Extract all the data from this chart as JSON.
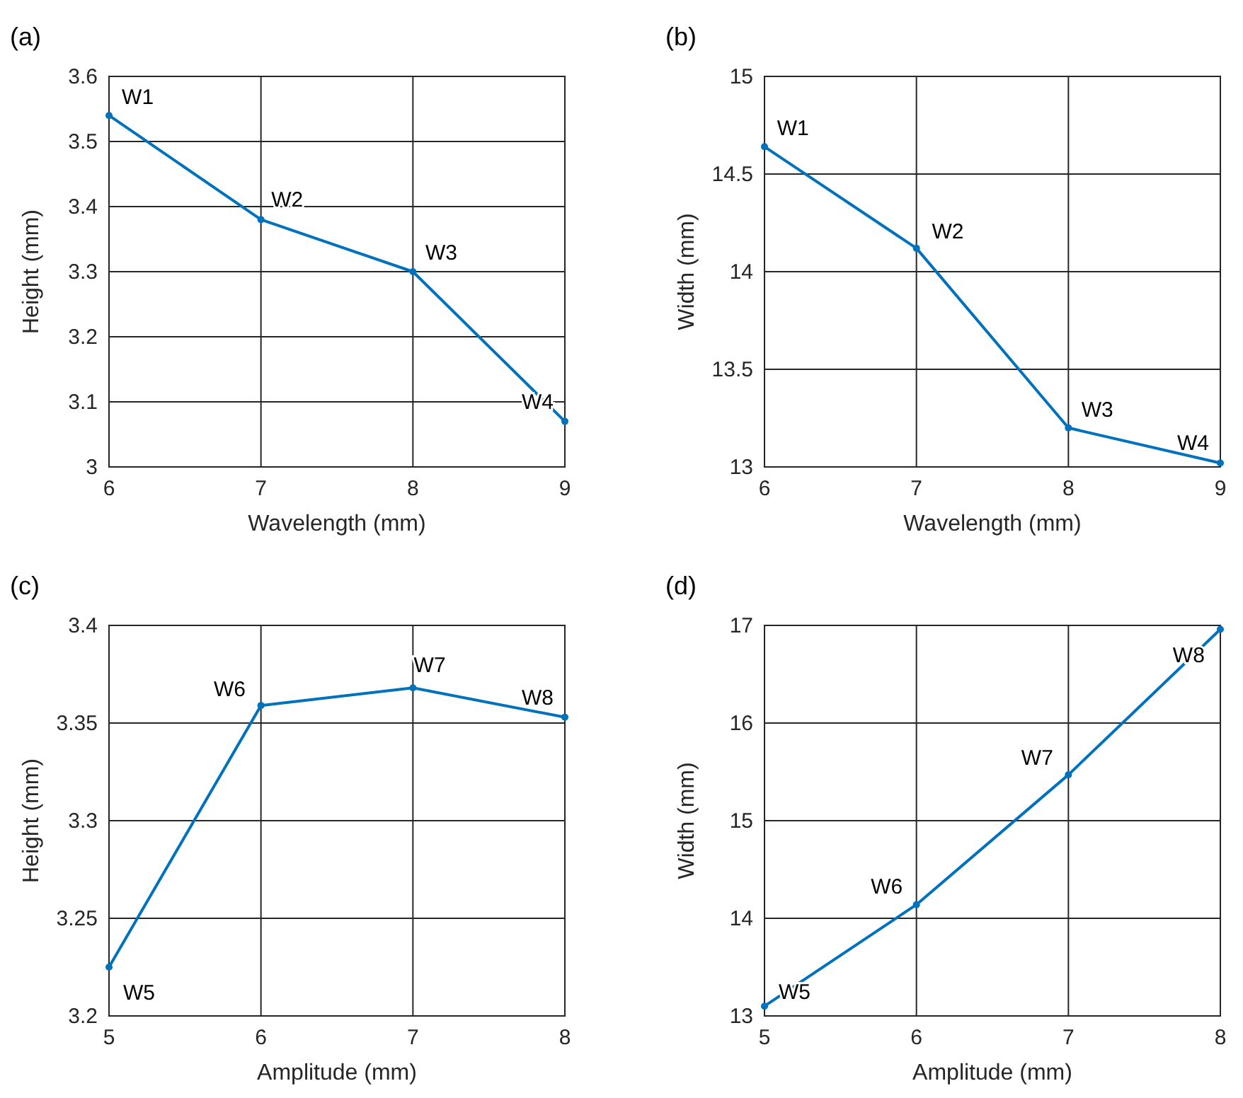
{
  "chart_data": [
    {
      "type": "line",
      "title": "(a)",
      "xlabel": "Wavelength (mm)",
      "ylabel": "Height (mm)",
      "x": [
        6,
        7,
        8,
        9
      ],
      "series": [
        {
          "color": "#0072bd",
          "values": [
            3.54,
            3.38,
            3.3,
            3.07
          ]
        }
      ],
      "xlim": [
        6,
        9
      ],
      "ylim": [
        3,
        3.6
      ],
      "xticks": [
        6,
        7,
        8,
        9
      ],
      "yticks": [
        3,
        3.1,
        3.2,
        3.3,
        3.4,
        3.5,
        3.6
      ],
      "grid": true,
      "marker": "circle",
      "annotations": [
        {
          "text": "W1",
          "x": 6,
          "y": 3.54
        },
        {
          "text": "W2",
          "x": 7,
          "y": 3.38
        },
        {
          "text": "W3",
          "x": 8,
          "y": 3.3
        },
        {
          "text": "W4",
          "x": 9,
          "y": 3.07
        }
      ]
    },
    {
      "type": "line",
      "title": "(b)",
      "xlabel": "Wavelength (mm)",
      "ylabel": "Width (mm)",
      "x": [
        6,
        7,
        8,
        9
      ],
      "series": [
        {
          "color": "#0072bd",
          "values": [
            14.64,
            14.12,
            13.2,
            13.02
          ]
        }
      ],
      "xlim": [
        6,
        9
      ],
      "ylim": [
        13,
        15
      ],
      "xticks": [
        6,
        7,
        8,
        9
      ],
      "yticks": [
        13,
        13.5,
        14,
        14.5,
        15
      ],
      "grid": true,
      "marker": "circle",
      "annotations": [
        {
          "text": "W1",
          "x": 6,
          "y": 14.64
        },
        {
          "text": "W2",
          "x": 7,
          "y": 14.12
        },
        {
          "text": "W3",
          "x": 8,
          "y": 13.2
        },
        {
          "text": "W4",
          "x": 9,
          "y": 13.02
        }
      ]
    },
    {
      "type": "line",
      "title": "(c)",
      "xlabel": "Amplitude (mm)",
      "ylabel": "Height (mm)",
      "x": [
        5,
        6,
        7,
        8
      ],
      "series": [
        {
          "color": "#0072bd",
          "values": [
            3.225,
            3.359,
            3.368,
            3.353
          ]
        }
      ],
      "xlim": [
        5,
        8
      ],
      "ylim": [
        3.2,
        3.4
      ],
      "xticks": [
        5,
        6,
        7,
        8
      ],
      "yticks": [
        3.2,
        3.25,
        3.3,
        3.35,
        3.4
      ],
      "grid": true,
      "marker": "circle",
      "annotations": [
        {
          "text": "W5",
          "x": 5,
          "y": 3.225
        },
        {
          "text": "W6",
          "x": 6,
          "y": 3.359
        },
        {
          "text": "W7",
          "x": 7,
          "y": 3.368
        },
        {
          "text": "W8",
          "x": 8,
          "y": 3.353
        }
      ]
    },
    {
      "type": "line",
      "title": "(d)",
      "xlabel": "Amplitude (mm)",
      "ylabel": "Width (mm)",
      "x": [
        5,
        6,
        7,
        8
      ],
      "series": [
        {
          "color": "#0072bd",
          "values": [
            13.1,
            14.14,
            15.47,
            16.96
          ]
        }
      ],
      "xlim": [
        5,
        8
      ],
      "ylim": [
        13,
        17
      ],
      "xticks": [
        5,
        6,
        7,
        8
      ],
      "yticks": [
        13,
        14,
        15,
        16,
        17
      ],
      "grid": true,
      "marker": "circle",
      "annotations": [
        {
          "text": "W5",
          "x": 5,
          "y": 13.1
        },
        {
          "text": "W6",
          "x": 6,
          "y": 14.14
        },
        {
          "text": "W7",
          "x": 7,
          "y": 15.47
        },
        {
          "text": "W8",
          "x": 8,
          "y": 16.96
        }
      ]
    }
  ]
}
